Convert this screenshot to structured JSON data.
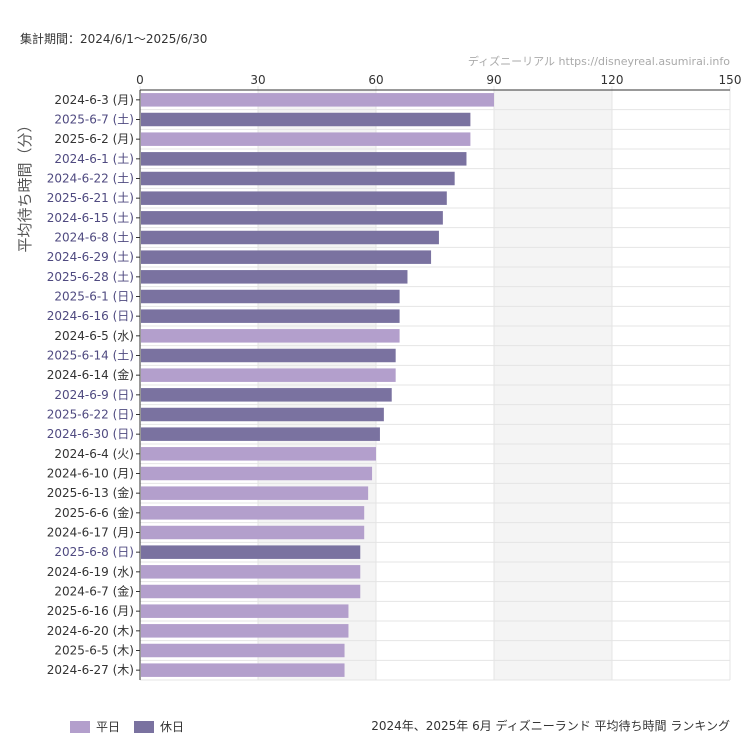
{
  "period_label": "集計期間：2024/6/1〜2025/6/30",
  "watermark": "ディズニーリアル https://disneyreal.asumirai.info",
  "caption": "2024年、2025年 6月 ディズニーランド 平均待ち時間 ランキング",
  "legend": [
    {
      "label": "平日",
      "color": "#b39fcc"
    },
    {
      "label": "休日",
      "color": "#7a72a0"
    }
  ],
  "colors": {
    "weekday": "#b39fcc",
    "holiday": "#7a72a0",
    "weekday_label": "#333333",
    "holiday_label": "#4f4a80",
    "shade_band": "#f4f4f4",
    "grid": "#e4e4e4"
  },
  "chart_data": {
    "type": "bar",
    "orientation": "horizontal",
    "title": "",
    "ylabel": "平均待ち時間（分）",
    "xlabel": "",
    "xlim": [
      0,
      150
    ],
    "xticks": [
      0,
      30,
      60,
      90,
      120,
      150
    ],
    "shaded_ranges": [
      [
        30,
        60
      ],
      [
        90,
        120
      ]
    ],
    "axis_position": "top",
    "grid": true,
    "legend_position": "bottom-left",
    "categories": [
      "2024-6-3 (月)",
      "2025-6-7 (土)",
      "2025-6-2 (月)",
      "2024-6-1 (土)",
      "2024-6-22 (土)",
      "2025-6-21 (土)",
      "2024-6-15 (土)",
      "2024-6-8 (土)",
      "2024-6-29 (土)",
      "2025-6-28 (土)",
      "2025-6-1 (日)",
      "2024-6-16 (日)",
      "2024-6-5 (水)",
      "2025-6-14 (土)",
      "2024-6-14 (金)",
      "2024-6-9 (日)",
      "2025-6-22 (日)",
      "2024-6-30 (日)",
      "2024-6-4 (火)",
      "2024-6-10 (月)",
      "2025-6-13 (金)",
      "2025-6-6 (金)",
      "2024-6-17 (月)",
      "2025-6-8 (日)",
      "2024-6-19 (水)",
      "2024-6-7 (金)",
      "2025-6-16 (月)",
      "2024-6-20 (木)",
      "2025-6-5 (木)",
      "2024-6-27 (木)"
    ],
    "values": [
      90,
      84,
      84,
      83,
      80,
      78,
      77,
      76,
      74,
      68,
      66,
      66,
      66,
      65,
      65,
      64,
      62,
      61,
      60,
      59,
      58,
      57,
      57,
      56,
      56,
      56,
      53,
      53,
      52,
      52
    ],
    "day_type": [
      "weekday",
      "holiday",
      "weekday",
      "holiday",
      "holiday",
      "holiday",
      "holiday",
      "holiday",
      "holiday",
      "holiday",
      "holiday",
      "holiday",
      "weekday",
      "holiday",
      "weekday",
      "holiday",
      "holiday",
      "holiday",
      "weekday",
      "weekday",
      "weekday",
      "weekday",
      "weekday",
      "holiday",
      "weekday",
      "weekday",
      "weekday",
      "weekday",
      "weekday",
      "weekday"
    ]
  }
}
